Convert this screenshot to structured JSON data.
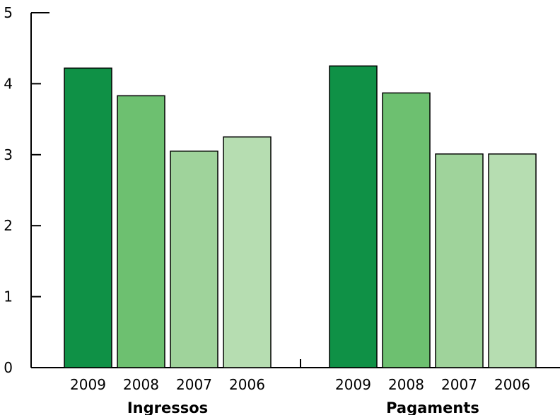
{
  "chart_data": {
    "type": "bar",
    "groups": [
      "Ingressos",
      "Pagaments"
    ],
    "categories": [
      "2009",
      "2008",
      "2007",
      "2006"
    ],
    "series": [
      {
        "group": "Ingressos",
        "values": [
          4.22,
          3.83,
          3.05,
          3.25
        ]
      },
      {
        "group": "Pagaments",
        "values": [
          4.25,
          3.87,
          3.01,
          3.01
        ]
      }
    ],
    "ylim": [
      0,
      5
    ],
    "yticks": [
      "0",
      "1",
      "2",
      "3",
      "4",
      "5"
    ],
    "title": "",
    "xlabel": "",
    "ylabel": "",
    "grid": false,
    "legend": "none",
    "colors": {
      "2009": "#0f9146",
      "2008": "#6dc070",
      "2007": "#9fd39b",
      "2006": "#b6ddb1"
    },
    "bar_stroke": "#000000"
  }
}
